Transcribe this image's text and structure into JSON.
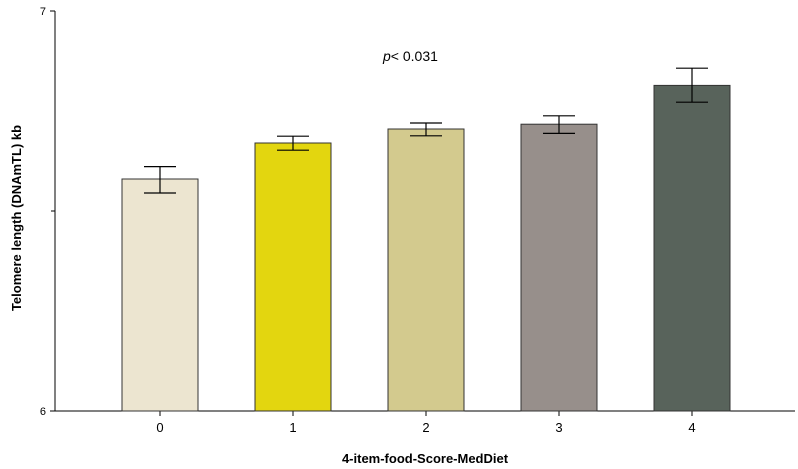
{
  "chart_data": {
    "type": "bar",
    "title": "",
    "xlabel": "4-item-food-Score-MedDiet",
    "ylabel": "Telomere length (DNAmTL) kb",
    "categories": [
      "0",
      "1",
      "2",
      "3",
      "4"
    ],
    "values": [
      6.58,
      6.67,
      6.705,
      6.717,
      6.814
    ],
    "error_low": [
      6.545,
      6.652,
      6.688,
      6.694,
      6.772
    ],
    "error_high": [
      6.611,
      6.687,
      6.72,
      6.738,
      6.857
    ],
    "bar_colors": [
      "#ece5d0",
      "#e3d60f",
      "#d3ca8e",
      "#978f8b",
      "#58635b"
    ],
    "ylim": [
      6,
      7
    ],
    "yticks": [
      6,
      7
    ],
    "y_tick_labels": [
      "6",
      "7"
    ],
    "y_minor_ticks": [
      6.5
    ],
    "grid": false,
    "legend": "none",
    "annotation": {
      "italic": "p",
      "text": "< 0.031"
    }
  }
}
